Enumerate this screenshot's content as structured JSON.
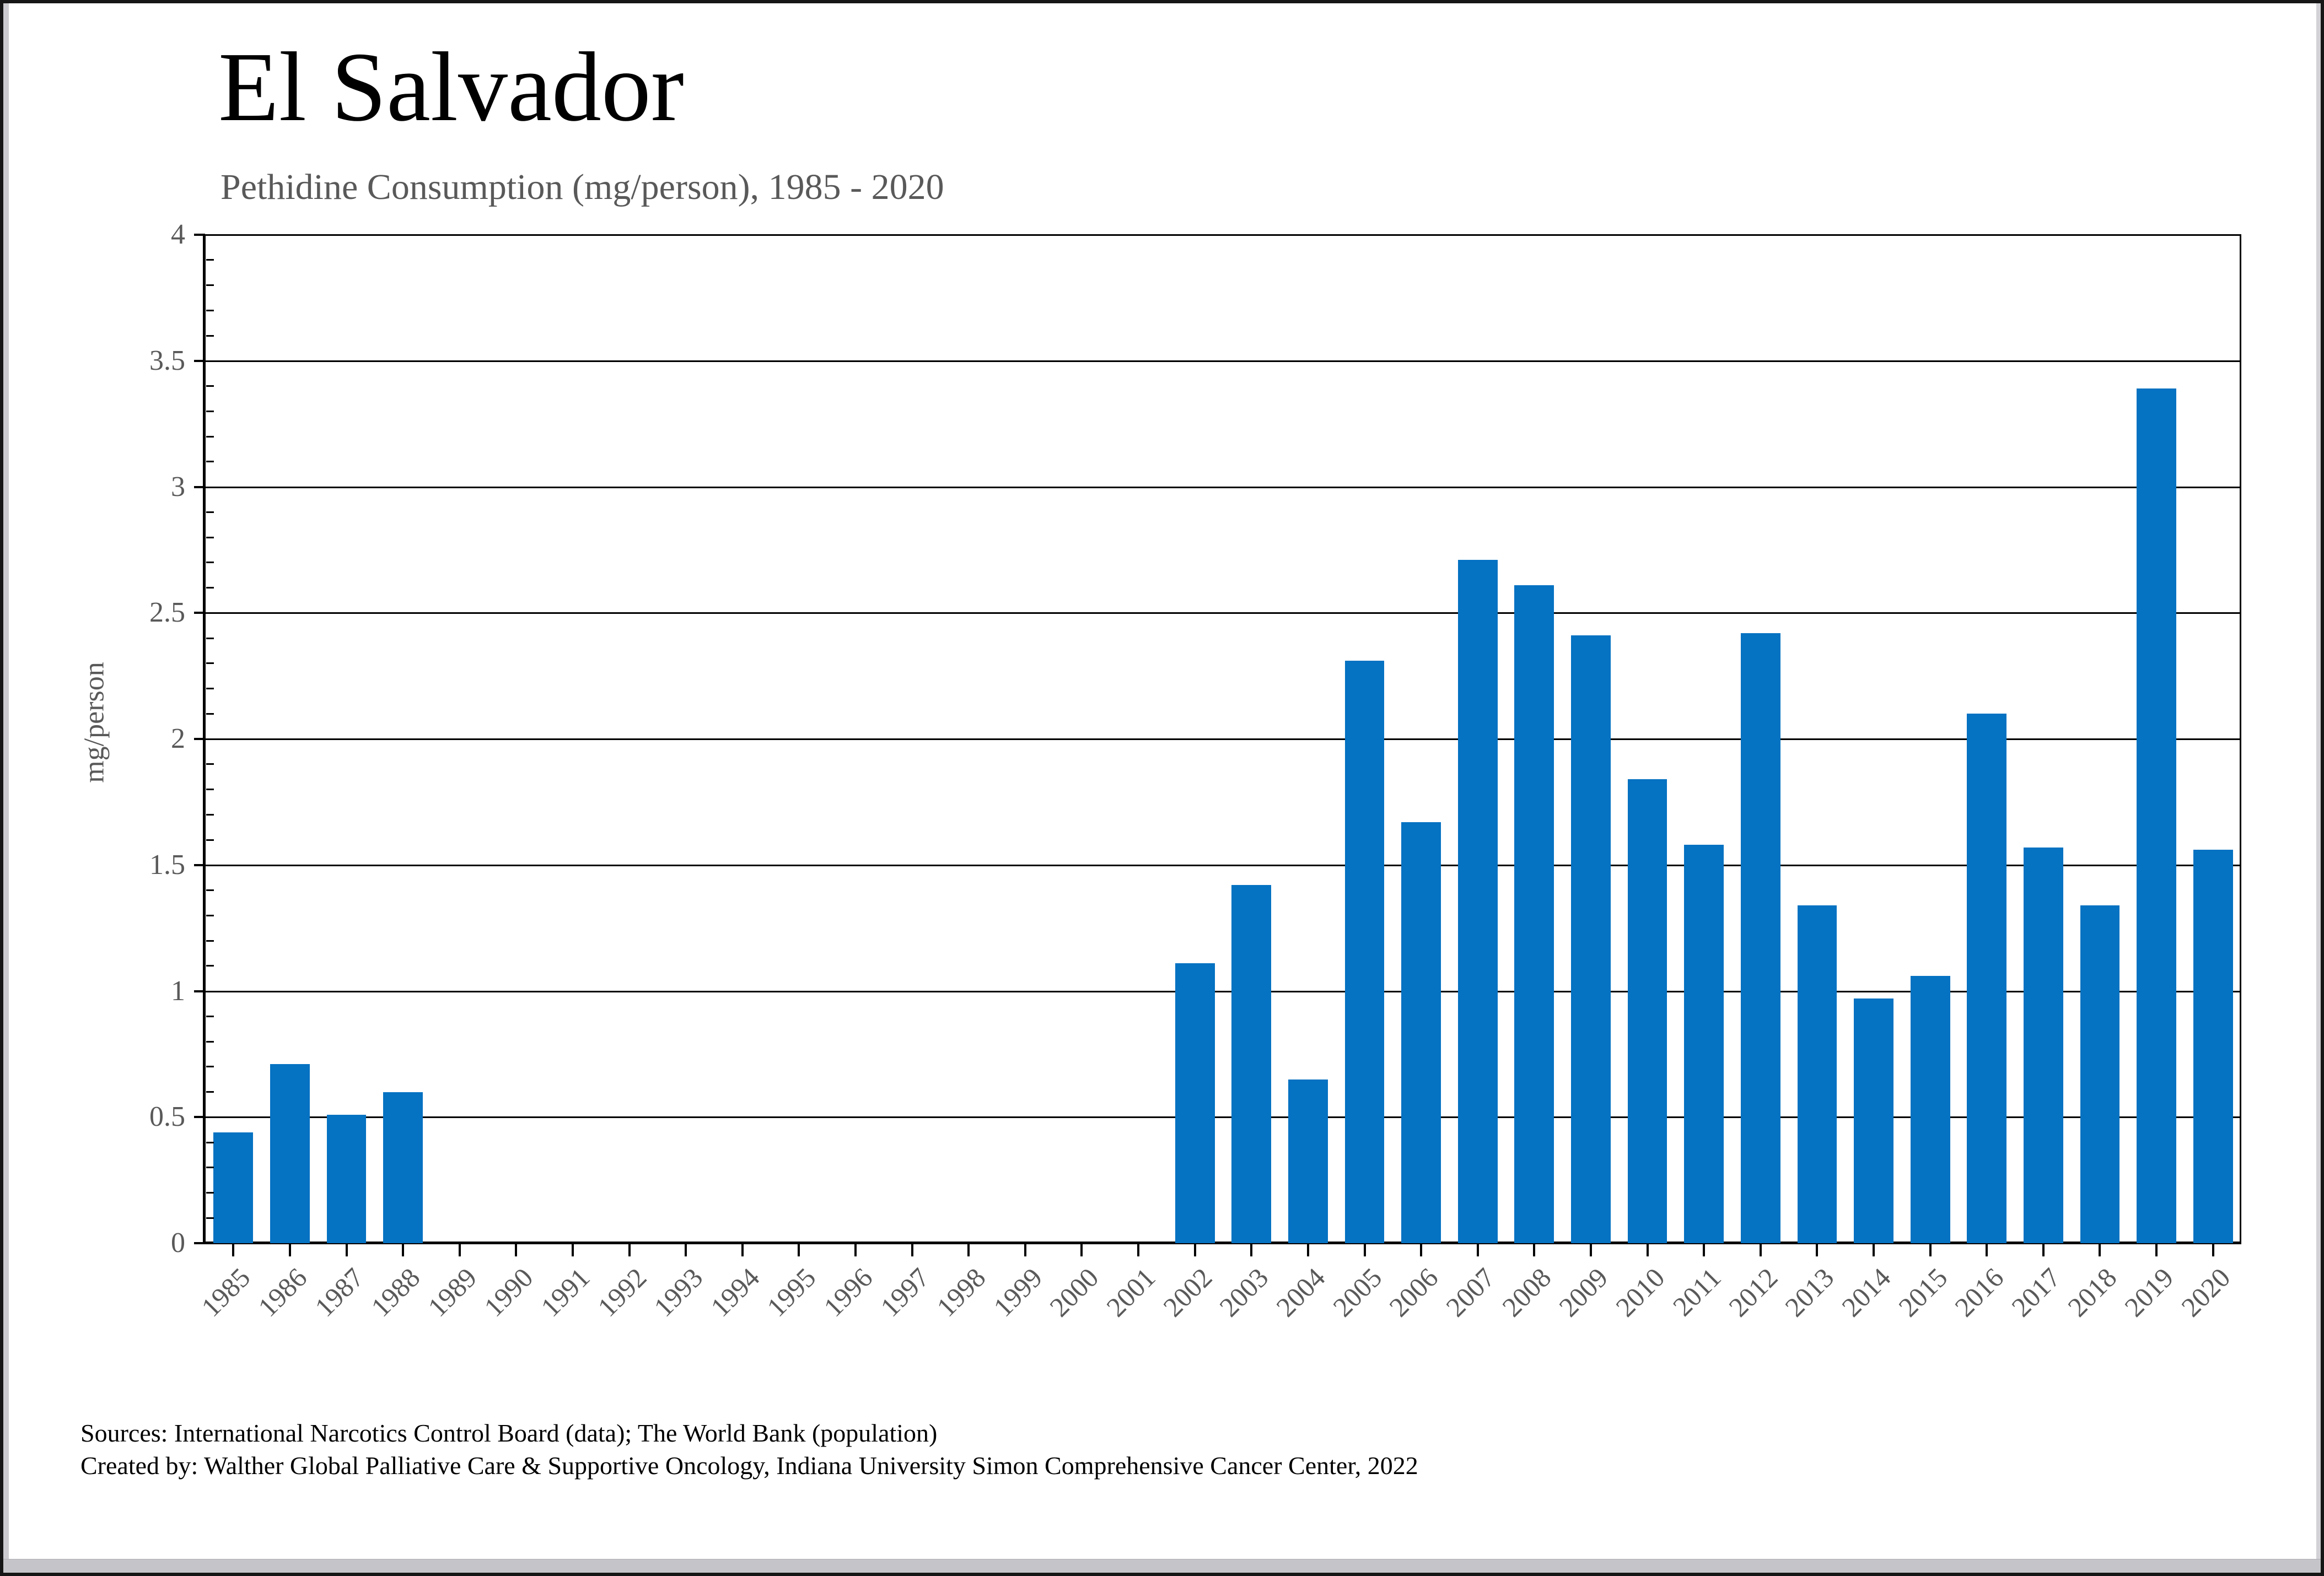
{
  "window": {
    "background": "#ffffff",
    "border_color": "#161616",
    "chrome_color": "#c9c9cd"
  },
  "chart_data": {
    "type": "bar",
    "title": "El Salvador",
    "subtitle": "Pethidine Consumption (mg/person), 1985 - 2020",
    "ylabel": "mg/person",
    "xlabel": "",
    "ylim": [
      0,
      4
    ],
    "y_major_step": 0.5,
    "y_minor_step": 0.1,
    "y_tick_labels": [
      "0",
      "0.5",
      "1",
      "1.5",
      "2",
      "2.5",
      "3",
      "3.5",
      "4"
    ],
    "grid": "horizontal-major",
    "legend": "none",
    "bar_color": "#0572c2",
    "axis_color": "#000000",
    "tick_label_color": "#595959",
    "categories": [
      "1985",
      "1986",
      "1987",
      "1988",
      "1989",
      "1990",
      "1991",
      "1992",
      "1993",
      "1994",
      "1995",
      "1996",
      "1997",
      "1998",
      "1999",
      "2000",
      "2001",
      "2002",
      "2003",
      "2004",
      "2005",
      "2006",
      "2007",
      "2008",
      "2009",
      "2010",
      "2011",
      "2012",
      "2013",
      "2014",
      "2015",
      "2016",
      "2017",
      "2018",
      "2019",
      "2020"
    ],
    "values": [
      0.44,
      0.71,
      0.51,
      0.6,
      0,
      0,
      0,
      0,
      0,
      0,
      0,
      0,
      0,
      0,
      0,
      0,
      0,
      1.11,
      1.42,
      0.65,
      2.31,
      1.67,
      2.71,
      2.61,
      2.41,
      1.84,
      1.58,
      2.42,
      1.34,
      0.97,
      1.06,
      2.1,
      1.57,
      1.34,
      3.39,
      1.56
    ]
  },
  "footer": {
    "line1": "Sources: International Narcotics Control Board (data); The World Bank (population)",
    "line2": "Created by: Walther Global Palliative Care & Supportive Oncology, Indiana University Simon Comprehensive Cancer Center, 2022"
  }
}
